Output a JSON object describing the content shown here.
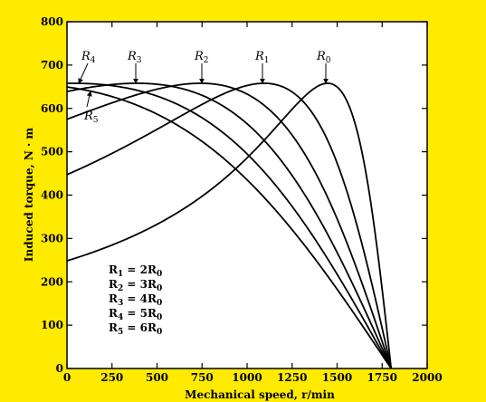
{
  "chart_data": {
    "type": "line",
    "xlabel": "Mechanical speed, r/min",
    "ylabel": "Induced torque, N · m",
    "xlim": [
      0,
      2000
    ],
    "ylim": [
      0,
      800
    ],
    "x_ticks": [
      0,
      250,
      500,
      750,
      1000,
      1250,
      1500,
      1750,
      2000
    ],
    "y_ticks": [
      0,
      100,
      200,
      300,
      400,
      500,
      600,
      700,
      800
    ],
    "grid": false,
    "background": "#FFEB00",
    "plot_background": "#FFFFFF",
    "line_color": "#000000",
    "series": [
      {
        "name": "R0",
        "label_main": "R",
        "label_sub": "0",
        "s_max": 0.196,
        "t_max": 658
      },
      {
        "name": "R1",
        "label_main": "R",
        "label_sub": "1",
        "s_max": 0.392,
        "t_max": 658
      },
      {
        "name": "R2",
        "label_main": "R",
        "label_sub": "2",
        "s_max": 0.588,
        "t_max": 658
      },
      {
        "name": "R3",
        "label_main": "R",
        "label_sub": "3",
        "s_max": 0.784,
        "t_max": 658
      },
      {
        "name": "R4",
        "label_main": "R",
        "label_sub": "4",
        "s_max": 0.98,
        "t_max": 658
      },
      {
        "name": "R5",
        "label_main": "R",
        "label_sub": "5",
        "s_max": 1.176,
        "t_max": 658
      }
    ],
    "sync_speed": 1800,
    "annotations": [
      {
        "main": "R",
        "sub": "1",
        "rest": " = 2R",
        "sub2": "0"
      },
      {
        "main": "R",
        "sub": "2",
        "rest": " = 3R",
        "sub2": "0"
      },
      {
        "main": "R",
        "sub": "3",
        "rest": " = 4R",
        "sub2": "0"
      },
      {
        "main": "R",
        "sub": "4",
        "rest": " = 5R",
        "sub2": "0"
      },
      {
        "main": "R",
        "sub": "5",
        "rest": " = 6R",
        "sub2": "0"
      }
    ]
  }
}
